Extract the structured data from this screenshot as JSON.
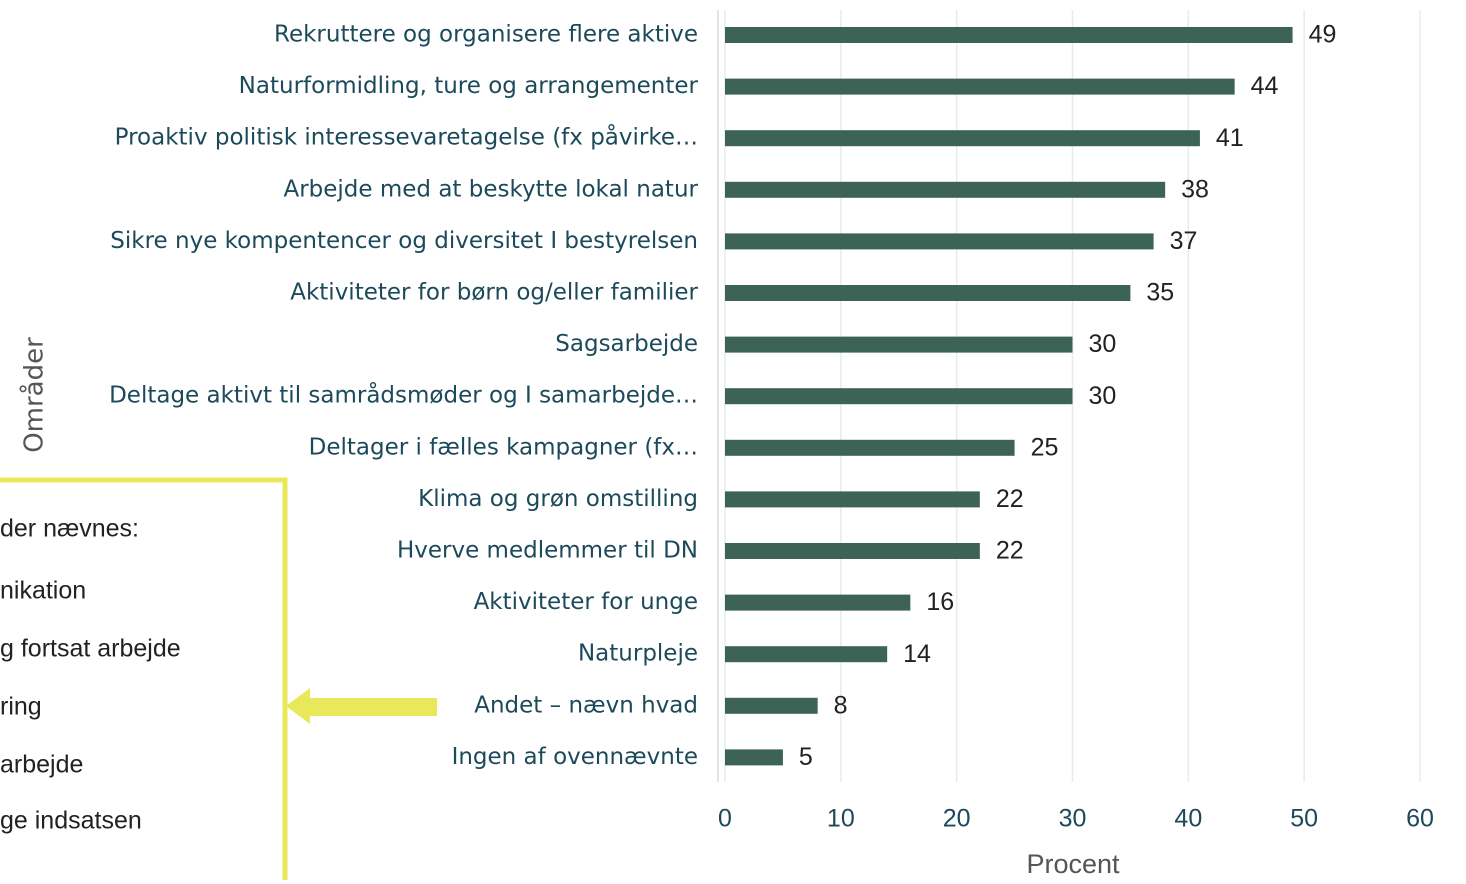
{
  "chart_data": {
    "type": "barh",
    "categories": [
      "Rekruttere og organisere flere aktive",
      "Naturformidling, ture og arrangementer",
      "Proaktiv politisk interessevaretagelse (fx påvirke…",
      "Arbejde med at beskytte lokal natur",
      "Sikre nye kompentencer og diversitet I bestyrelsen",
      "Aktiviteter for børn og/eller familier",
      "Sagsarbejde",
      "Deltage aktivt til samrådsmøder og I samarbejde…",
      "Deltager i fælles kampagner (fx…",
      "Klima og grøn omstilling",
      "Hverve medlemmer til DN",
      "Aktiviteter for unge",
      "Naturpleje",
      "Andet – nævn hvad",
      "Ingen af ovennævnte"
    ],
    "values": [
      49,
      44,
      41,
      38,
      37,
      35,
      30,
      30,
      25,
      22,
      22,
      16,
      14,
      8,
      5
    ],
    "color": "#3d6357",
    "xlim": [
      0,
      60
    ],
    "xticks": [
      0,
      10,
      20,
      30,
      40,
      50,
      60
    ],
    "grid": true,
    "xlabel": "Procent",
    "ylabel": "Områder"
  },
  "callout": {
    "lines": [
      "der nævnes:",
      "nikation",
      "g fortsat arbejde",
      "ring",
      "arbejde",
      "ge indsatsen"
    ]
  }
}
